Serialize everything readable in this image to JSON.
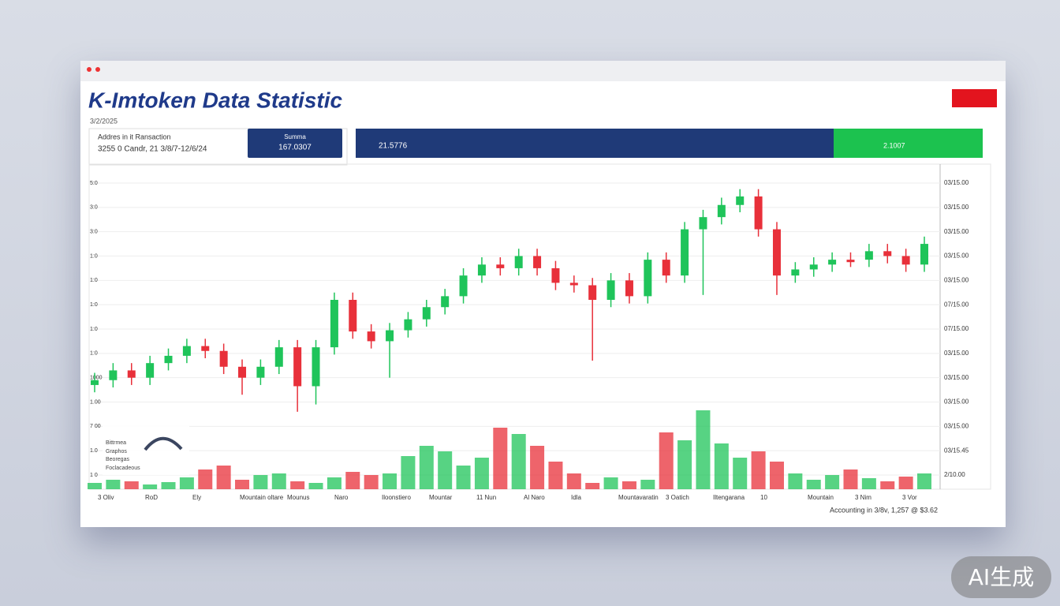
{
  "header": {
    "title": "K-Imtoken Data Statistic",
    "date": "3/2/2025"
  },
  "info": {
    "line1": "Addres in it Ransaction",
    "line2": "3255 0 Candr, 21 3/8/7-12/6/24"
  },
  "summary": {
    "label": "Summa",
    "value": "167.0307"
  },
  "bar_main": "21.5776",
  "bar_green": "2.1007",
  "legend_box": [
    "Bittrmea",
    "Graphos",
    "Beoregas",
    "Foclacadeous"
  ],
  "footer": "Accounting in 3/8v, 1,257 @ $3.62",
  "watermark": "AI生成",
  "chart_data": {
    "type": "candlestick",
    "open": [
      3.7,
      3.9,
      4.3,
      4.0,
      4.6,
      4.9,
      5.3,
      5.1,
      4.45,
      4.0,
      4.45,
      5.25,
      3.65,
      5.25,
      7.2,
      5.9,
      5.5,
      5.95,
      6.4,
      6.9,
      7.35,
      8.2,
      8.65,
      8.5,
      9.0,
      8.5,
      7.9,
      7.8,
      7.2,
      8.0,
      7.35,
      8.85,
      8.2,
      10.1,
      10.6,
      11.1,
      11.45,
      10.1,
      8.2,
      8.45,
      8.65,
      8.85,
      8.85,
      9.2,
      9.0,
      8.65
    ],
    "high": [
      4.2,
      4.6,
      4.6,
      4.9,
      5.2,
      5.6,
      5.6,
      5.4,
      4.75,
      4.75,
      5.55,
      5.55,
      5.55,
      7.5,
      7.5,
      6.2,
      6.25,
      6.7,
      7.2,
      7.65,
      8.5,
      8.95,
      8.95,
      9.3,
      9.3,
      8.8,
      8.2,
      8.1,
      8.3,
      8.3,
      9.15,
      9.15,
      10.4,
      10.9,
      11.4,
      11.75,
      11.75,
      10.4,
      8.75,
      8.95,
      9.15,
      9.15,
      9.5,
      9.5,
      9.3,
      9.8
    ],
    "low": [
      3.4,
      3.6,
      3.7,
      3.7,
      4.3,
      4.6,
      4.8,
      4.15,
      3.3,
      3.7,
      4.15,
      2.6,
      2.9,
      4.95,
      5.6,
      5.2,
      4.0,
      5.65,
      6.1,
      6.6,
      7.05,
      7.9,
      8.2,
      8.2,
      8.2,
      7.6,
      7.5,
      4.7,
      6.9,
      7.05,
      7.05,
      7.9,
      7.9,
      7.4,
      10.3,
      10.8,
      9.8,
      7.4,
      7.9,
      8.15,
      8.35,
      8.55,
      8.55,
      8.7,
      8.35,
      8.35
    ],
    "close": [
      3.9,
      4.3,
      4.0,
      4.6,
      4.9,
      5.3,
      5.1,
      4.45,
      4.0,
      4.45,
      5.25,
      3.65,
      5.25,
      7.2,
      5.9,
      5.5,
      5.95,
      6.4,
      6.9,
      7.35,
      8.2,
      8.65,
      8.5,
      9.0,
      8.5,
      7.9,
      7.8,
      7.2,
      8.0,
      7.35,
      8.85,
      8.2,
      10.1,
      10.6,
      11.1,
      11.45,
      10.1,
      8.2,
      8.45,
      8.65,
      8.85,
      8.75,
      9.2,
      9.0,
      8.65,
      9.5
    ],
    "volume": [
      8,
      12,
      10,
      6,
      9,
      15,
      25,
      30,
      12,
      18,
      20,
      10,
      8,
      15,
      22,
      18,
      20,
      42,
      55,
      48,
      30,
      40,
      78,
      70,
      55,
      35,
      20,
      8,
      15,
      10,
      12,
      72,
      62,
      100,
      58,
      40,
      48,
      35,
      20,
      12,
      18,
      25,
      14,
      10,
      16,
      20
    ],
    "up_color": "#1fc45a",
    "down_color": "#e8303a",
    "ylim": [
      0,
      12
    ],
    "yticks": [
      {
        "value": 0,
        "label": "2/10.00"
      },
      {
        "value": 1,
        "label": "03/15.45"
      },
      {
        "value": 2,
        "label": "03/15.00"
      },
      {
        "value": 3,
        "label": "03/15.00"
      },
      {
        "value": 4,
        "label": "03/15.00"
      },
      {
        "value": 5,
        "label": "03/15.00"
      },
      {
        "value": 6,
        "label": "07/15.00"
      },
      {
        "value": 7,
        "label": "07/15.00"
      },
      {
        "value": 8,
        "label": "03/15.00"
      },
      {
        "value": 9,
        "label": "03/15.00"
      },
      {
        "value": 10,
        "label": "03/15.00"
      },
      {
        "value": 11,
        "label": "03/15.00"
      },
      {
        "value": 12,
        "label": "03/15.00"
      }
    ],
    "y_left_labels": [
      "1 0",
      "1.0",
      "7 00",
      "1.00",
      "1000",
      "1:0",
      "1:0",
      "1:0",
      "1:0",
      "1:0",
      "3:0",
      "3:0",
      "5:0"
    ],
    "volume_lim": [
      0,
      100
    ],
    "x_labels": [
      "3 Oliv",
      "RoD",
      "Ely",
      "Mountain oltare",
      "Mounus",
      "Naro",
      "Iloonstiero",
      "Mountar",
      "11 Nun",
      "Al Naro",
      "Idla",
      "Mountavaratin",
      "3 Oatich",
      "Iltengarana",
      "10",
      "Mountain",
      "3 Nim",
      "3 Vor"
    ],
    "grid": true
  }
}
